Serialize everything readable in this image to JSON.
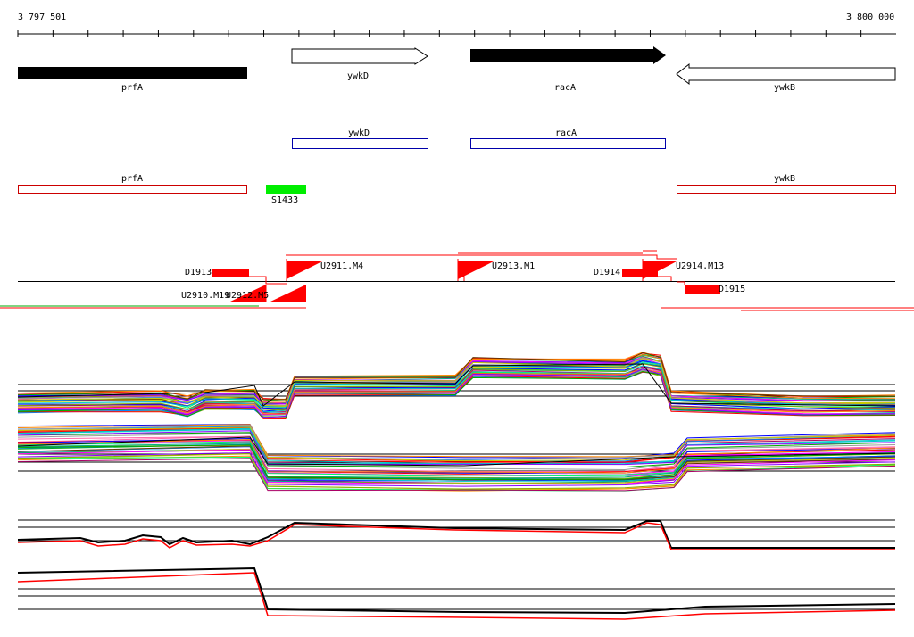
{
  "ruler": {
    "start_label": "3 797 501",
    "end_label": "3 800 000"
  },
  "genes": {
    "prfA": "prfA",
    "ywkD": "ywkD",
    "racA": "racA",
    "ywkB": "ywkB"
  },
  "cds": {
    "ywkD": "ywkD",
    "racA": "racA",
    "prfA": "prfA",
    "ywkB": "ywkB"
  },
  "segment": "S1433",
  "transcripts": {
    "D1913": "D1913",
    "U2911": "U2911.M4",
    "U2913": "U2913.M1",
    "D1914": "D1914",
    "U2914": "U2914.M13",
    "U2910": "U2910.M19",
    "U2912": "U2912.M5",
    "D1915": "D1915"
  },
  "colors": {
    "gene_fill": "#000000",
    "cds_blue": "#0000aa",
    "cds_red": "#cc0000",
    "segment_green": "#00ee00",
    "feature_red": "#ff0000",
    "baseline": "#000000"
  }
}
